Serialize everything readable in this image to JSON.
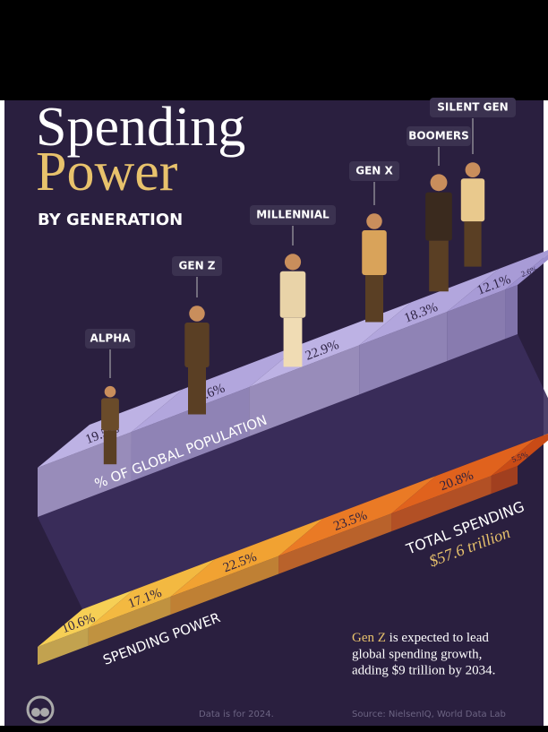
{
  "chart_data": {
    "type": "bar",
    "title": "Spending",
    "title_2": "Power",
    "subtitle": "BY GENERATION",
    "categories": [
      "ALPHA",
      "GEN Z",
      "MILLENNIAL",
      "GEN X",
      "BOOMERS",
      "SILENT GEN"
    ],
    "series": [
      {
        "name": "% OF GLOBAL POPULATION",
        "colors": [
          "#bdb2e4",
          "#b2a6dd",
          "#bdb2e4",
          "#b2a6dd",
          "#a89bd6",
          "#9d90cf"
        ],
        "values": [
          19.5,
          24.6,
          22.9,
          18.3,
          12.1,
          2.6
        ],
        "value_labels": [
          "19.5%",
          "24.6%",
          "22.9%",
          "18.3%",
          "12.1%",
          "2.6%"
        ]
      },
      {
        "name": "SPENDING POWER",
        "colors": [
          "#f6cf55",
          "#f3b941",
          "#f1a232",
          "#ea7a25",
          "#e0621d",
          "#c94b16"
        ],
        "values": [
          10.6,
          17.1,
          22.5,
          23.5,
          20.8,
          5.5
        ],
        "value_labels": [
          "10.6%",
          "17.1%",
          "22.5%",
          "23.5%",
          "20.8%",
          "5.5%"
        ]
      }
    ],
    "total_label": "TOTAL SPENDING",
    "total_value": "$57.6 trillion",
    "note": {
      "highlight": "Gen Z",
      "lines": [
        " is expected to lead",
        "global spending growth,",
        "adding $9 trillion by 2034."
      ]
    },
    "footnote": "Data is for 2024.",
    "source": "Source: NielsenIQ, World Data Lab"
  }
}
